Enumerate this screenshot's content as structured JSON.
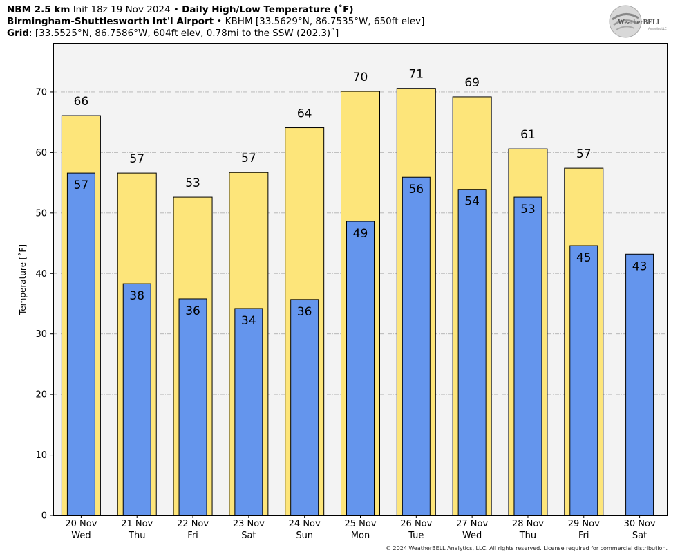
{
  "header": {
    "model": "NBM 2.5 km",
    "init": "Init 18z 19 Nov 2024",
    "bullet": "•",
    "product": "Daily High/Low Temperature (˚F)",
    "station_name": "Birmingham-Shuttlesworth Int'l Airport",
    "station_info": "KBHM [33.5629°N, 86.7535°W, 650ft elev]",
    "grid_label": "Grid",
    "grid_info": ": [33.5525°N, 86.7586°W, 604ft elev, 0.78mi to the SSW (202.3)˚]"
  },
  "logo": {
    "text": "WeatherBELL",
    "subtext": "Analytics LLC"
  },
  "copyright": "© 2024 WeatherBELL Analytics, LLC. All rights reserved. License required for commercial distribution.",
  "colors": {
    "high": "#fde57a",
    "low": "#6495ed",
    "plot_bg": "#f3f3f3",
    "grid": "#b0b0b0"
  },
  "chart_data": {
    "type": "bar",
    "ylabel": "Temperature [˚F]",
    "ylim": [
      0,
      78
    ],
    "yticks": [
      0,
      10,
      20,
      30,
      40,
      50,
      60,
      70
    ],
    "grid": true,
    "categories": [
      [
        "20 Nov",
        "Wed"
      ],
      [
        "21 Nov",
        "Thu"
      ],
      [
        "22 Nov",
        "Fri"
      ],
      [
        "23 Nov",
        "Sat"
      ],
      [
        "24 Nov",
        "Sun"
      ],
      [
        "25 Nov",
        "Mon"
      ],
      [
        "26 Nov",
        "Tue"
      ],
      [
        "27 Nov",
        "Wed"
      ],
      [
        "28 Nov",
        "Thu"
      ],
      [
        "29 Nov",
        "Fri"
      ],
      [
        "30 Nov",
        "Sat"
      ]
    ],
    "series": [
      {
        "values": [
          66.1,
          56.6,
          52.6,
          56.7,
          64.1,
          70.1,
          70.6,
          69.2,
          60.6,
          57.4,
          null
        ],
        "labels": [
          "66",
          "57",
          "53",
          "57",
          "64",
          "70",
          "71",
          "69",
          "61",
          "57",
          ""
        ]
      },
      {
        "values": [
          56.6,
          38.3,
          35.8,
          34.2,
          35.7,
          48.6,
          55.9,
          53.9,
          52.6,
          44.6,
          43.2
        ],
        "labels": [
          "57",
          "38",
          "36",
          "34",
          "36",
          "49",
          "56",
          "54",
          "53",
          "45",
          "43"
        ]
      }
    ]
  }
}
